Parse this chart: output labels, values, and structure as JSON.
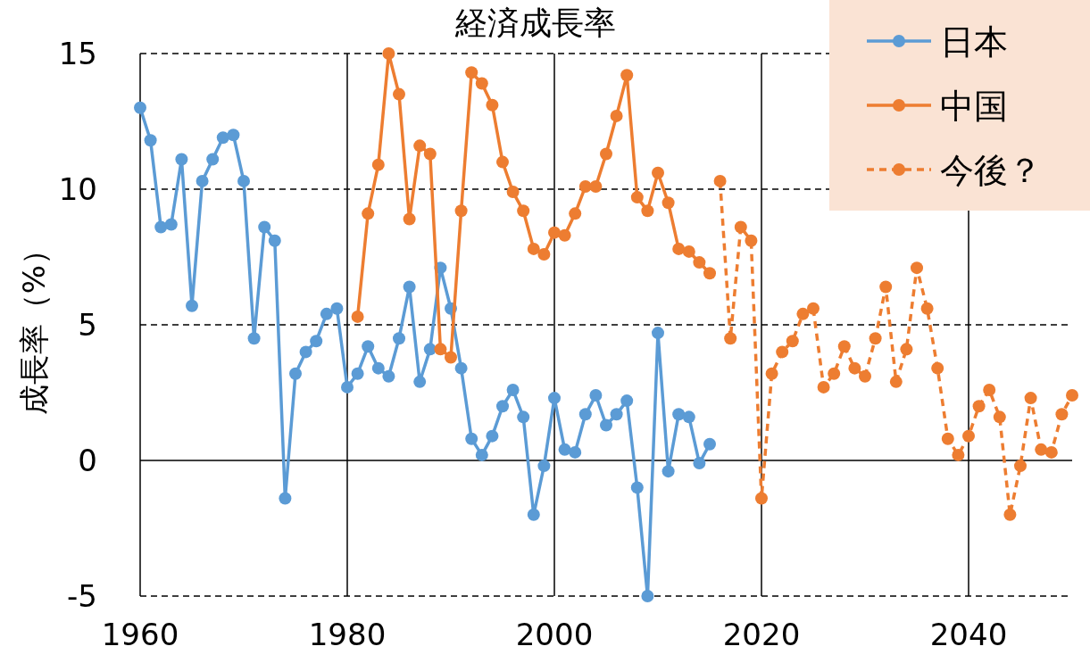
{
  "chart_data": {
    "type": "line",
    "title": "経済成長率",
    "ylabel": "成長率（%）",
    "xlim": [
      1960,
      2050
    ],
    "xticks": [
      1960,
      1980,
      2000,
      2020,
      2040
    ],
    "ylim": [
      -5,
      15
    ],
    "yticks": [
      -5,
      0,
      5,
      10,
      15
    ],
    "grid": true,
    "legend": "top right",
    "marker": "circle",
    "series": [
      {
        "name": "日本",
        "color": "#5b9bd5",
        "line_style": "solid",
        "x": [
          1960,
          1961,
          1962,
          1963,
          1964,
          1965,
          1966,
          1967,
          1968,
          1969,
          1970,
          1971,
          1972,
          1973,
          1974,
          1975,
          1976,
          1977,
          1978,
          1979,
          1980,
          1981,
          1982,
          1983,
          1984,
          1985,
          1986,
          1987,
          1988,
          1989,
          1990,
          1991,
          1992,
          1993,
          1994,
          1995,
          1996,
          1997,
          1998,
          1999,
          2000,
          2001,
          2002,
          2003,
          2004,
          2005,
          2006,
          2007,
          2008,
          2009,
          2010,
          2011,
          2012,
          2013,
          2014,
          2015
        ],
        "values": [
          13.0,
          11.8,
          8.6,
          8.7,
          11.1,
          5.7,
          10.3,
          11.1,
          11.9,
          12.0,
          10.3,
          4.5,
          8.6,
          8.1,
          -1.4,
          3.2,
          4.0,
          4.4,
          5.4,
          5.6,
          2.7,
          3.2,
          4.2,
          3.4,
          3.1,
          4.5,
          6.4,
          2.9,
          4.1,
          7.1,
          5.6,
          3.4,
          0.8,
          0.2,
          0.9,
          2.0,
          2.6,
          1.6,
          -2.0,
          -0.2,
          2.3,
          0.4,
          0.3,
          1.7,
          2.4,
          1.3,
          1.7,
          2.2,
          -1.0,
          -5.0,
          4.7,
          -0.4,
          1.7,
          1.6,
          -0.1,
          0.6
        ]
      },
      {
        "name": "中国",
        "color": "#ed7d31",
        "line_style": "solid",
        "x": [
          1981,
          1982,
          1983,
          1984,
          1985,
          1986,
          1987,
          1988,
          1989,
          1990,
          1991,
          1992,
          1993,
          1994,
          1995,
          1996,
          1997,
          1998,
          1999,
          2000,
          2001,
          2002,
          2003,
          2004,
          2005,
          2006,
          2007,
          2008,
          2009,
          2010,
          2011,
          2012,
          2013,
          2014,
          2015
        ],
        "values": [
          5.3,
          9.1,
          10.9,
          15.0,
          13.5,
          8.9,
          11.6,
          11.3,
          4.1,
          3.8,
          9.2,
          14.3,
          13.9,
          13.1,
          11.0,
          9.9,
          9.2,
          7.8,
          7.6,
          8.4,
          8.3,
          9.1,
          10.1,
          10.1,
          11.3,
          12.7,
          14.2,
          9.7,
          9.2,
          10.6,
          9.5,
          7.8,
          7.7,
          7.3,
          6.9
        ]
      },
      {
        "name": "今後？",
        "color": "#ed7d31",
        "line_style": "dashed",
        "x": [
          2016,
          2017,
          2018,
          2019,
          2020,
          2021,
          2022,
          2023,
          2024,
          2025,
          2026,
          2027,
          2028,
          2029,
          2030,
          2031,
          2032,
          2033,
          2034,
          2035,
          2036,
          2037,
          2038,
          2039,
          2040,
          2041,
          2042,
          2043,
          2044,
          2045,
          2046,
          2047,
          2048,
          2049,
          2050
        ],
        "values": [
          10.3,
          4.5,
          8.6,
          8.1,
          -1.4,
          3.2,
          4.0,
          4.4,
          5.4,
          5.6,
          2.7,
          3.2,
          4.2,
          3.4,
          3.1,
          4.5,
          6.4,
          2.9,
          4.1,
          7.1,
          5.6,
          3.4,
          0.8,
          0.2,
          0.9,
          2.0,
          2.6,
          1.6,
          -2.0,
          -0.2,
          2.3,
          0.4,
          0.3,
          1.7,
          2.4
        ]
      }
    ]
  }
}
